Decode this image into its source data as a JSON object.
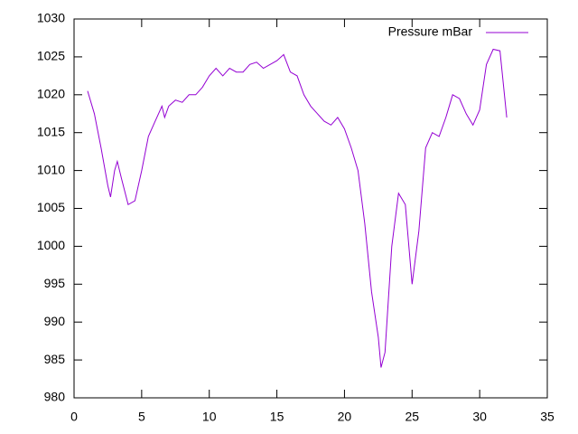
{
  "chart_data": {
    "type": "line",
    "x": [
      1,
      1.5,
      2,
      2.5,
      2.7,
      3,
      3.2,
      3.5,
      4,
      4.5,
      5,
      5.5,
      6,
      6.5,
      6.7,
      7,
      7.5,
      8,
      8.5,
      9,
      9.5,
      10,
      10.5,
      11,
      11.5,
      12,
      12.5,
      13,
      13.5,
      14,
      14.5,
      15,
      15.5,
      16,
      16.5,
      17,
      17.5,
      18,
      18.5,
      19,
      19.5,
      20,
      20.5,
      21,
      21.5,
      22,
      22.5,
      22.7,
      23,
      23.5,
      24,
      24.5,
      25,
      25.5,
      26,
      26.5,
      27,
      27.5,
      28,
      28.5,
      29,
      29.5,
      30,
      30.5,
      31,
      31.5,
      32
    ],
    "series": [
      {
        "name": "Pressure mBar",
        "color": "#9400d3",
        "values": [
          1020.5,
          1017.5,
          1013,
          1008,
          1006.5,
          1010,
          1011.2,
          1009,
          1005.5,
          1006,
          1010,
          1014.5,
          1016.5,
          1018.5,
          1017,
          1018.5,
          1019.3,
          1019,
          1020,
          1020,
          1021,
          1022.5,
          1023.5,
          1022.5,
          1023.5,
          1023,
          1023,
          1024,
          1024.3,
          1023.5,
          1024,
          1024.5,
          1025.3,
          1023,
          1022.5,
          1020,
          1018.5,
          1017.5,
          1016.5,
          1016,
          1017,
          1015.5,
          1013,
          1010,
          1003,
          994,
          988,
          984,
          986,
          1000,
          1007,
          1005.5,
          995,
          1002,
          1013,
          1015,
          1014.5,
          1017,
          1020,
          1019.5,
          1017.5,
          1016,
          1018,
          1024,
          1026,
          1025.8,
          1017
        ]
      }
    ],
    "xlim": [
      0,
      35
    ],
    "xticks": [
      0,
      5,
      10,
      15,
      20,
      25,
      30,
      35
    ],
    "ylim": [
      980,
      1030
    ],
    "yticks": [
      980,
      985,
      990,
      995,
      1000,
      1005,
      1010,
      1015,
      1020,
      1025,
      1030
    ],
    "legend": "top-right"
  }
}
